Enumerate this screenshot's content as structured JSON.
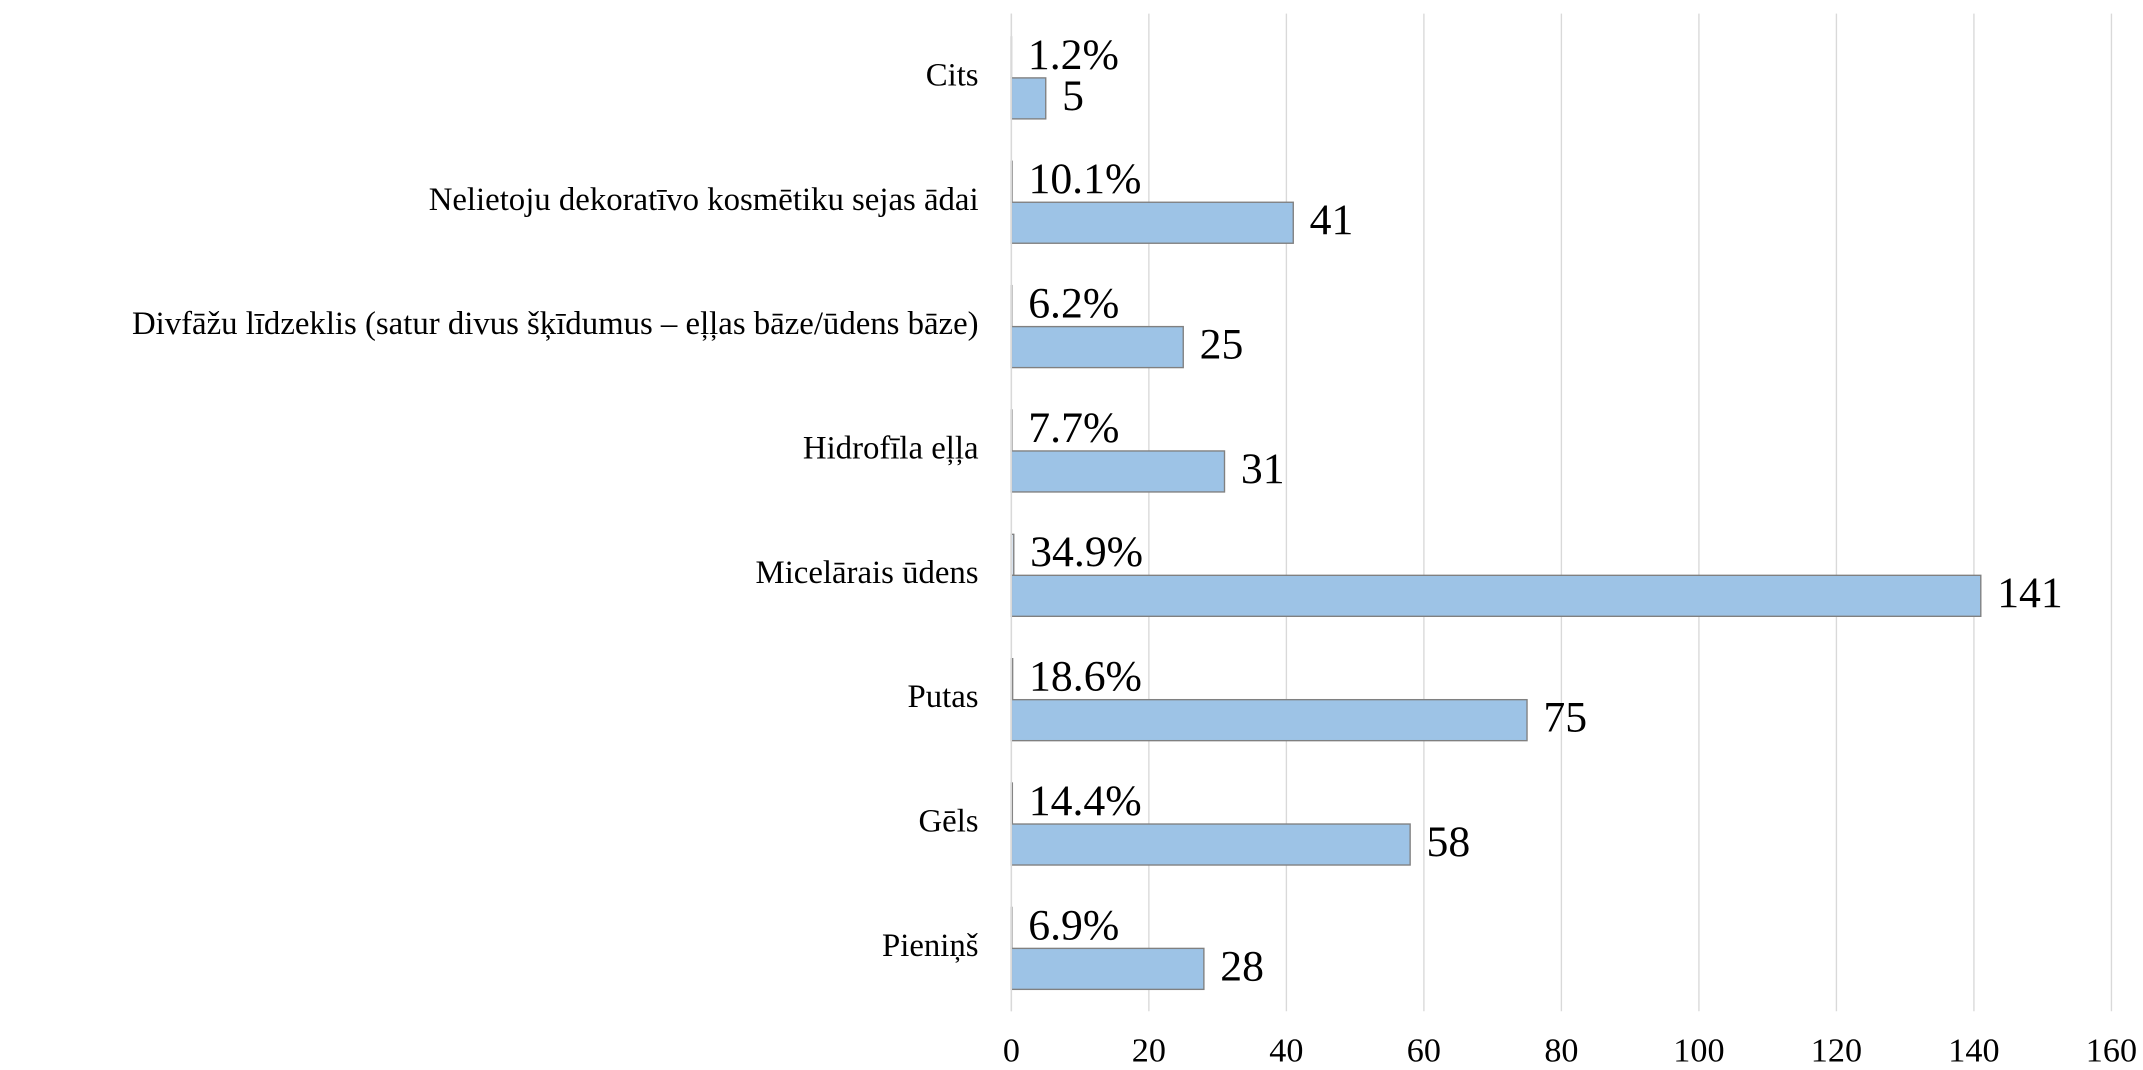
{
  "chart_data": {
    "type": "bar",
    "orientation": "horizontal",
    "categories": [
      "Cits",
      "Nelietoju dekoratīvo kosmētiku sejas ādai",
      "Divfāžu līdzeklis (satur divus šķīdumus – eļļas bāze/ūdens bāze)",
      "Hidrofīla eļļa",
      "Micelārais ūdens",
      "Putas",
      "Gēls",
      "Pieniņš"
    ],
    "series": [
      {
        "color": "#dce8f5",
        "values": [
          0.012,
          0.101,
          0.062,
          0.077,
          0.349,
          0.186,
          0.144,
          0.069
        ],
        "value_labels": [
          "1.2%",
          "10.1%",
          "6.2%",
          "7.7%",
          "34.9%",
          "18.6%",
          "14.4%",
          "6.9%"
        ]
      },
      {
        "color": "#9dc3e6",
        "values": [
          5,
          41,
          25,
          31,
          141,
          75,
          58,
          28
        ]
      }
    ],
    "xlim": [
      0,
      160
    ],
    "xticks": [
      0,
      20,
      40,
      60,
      80,
      100,
      120,
      140,
      160
    ],
    "grid": true
  }
}
